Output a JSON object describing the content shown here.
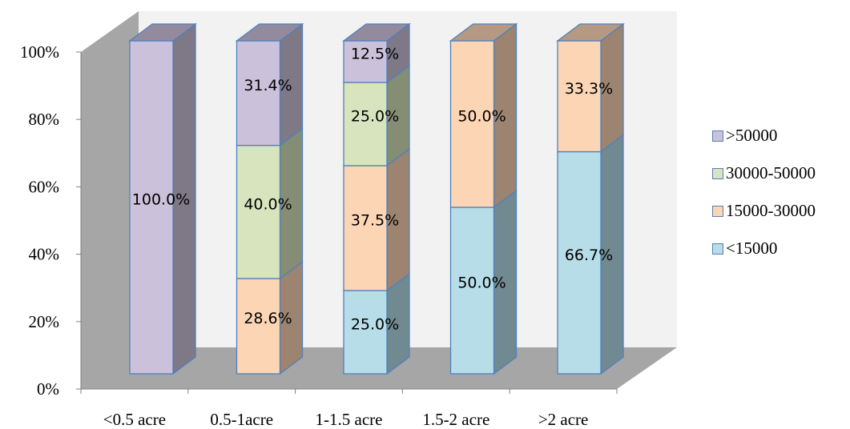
{
  "chart_data": {
    "type": "bar",
    "stacked": true,
    "percent": true,
    "three_d": true,
    "categories": [
      "<0.5 acre",
      "0.5-1acre",
      "1-1.5 acre",
      "1.5-2 acre",
      ">2 acre"
    ],
    "series": [
      {
        "name": "<15000",
        "color": "#b7dde8",
        "values": [
          0,
          0,
          25.0,
          50.0,
          66.7
        ]
      },
      {
        "name": "15000-30000",
        "color": "#fcd5b5",
        "values": [
          0,
          28.6,
          37.5,
          50.0,
          33.3
        ]
      },
      {
        "name": "30000-50000",
        "color": "#d7e4bd",
        "values": [
          0,
          40.0,
          25.0,
          0,
          0
        ]
      },
      {
        "name": ">50000",
        "color": "#ccc1da",
        "values": [
          100.0,
          31.4,
          12.5,
          0,
          0
        ]
      }
    ],
    "data_labels": [
      [
        "",
        "",
        "25.0%",
        "50.0%",
        "66.7%"
      ],
      [
        "",
        "28.6%",
        "37.5%",
        "50.0%",
        "33.3%"
      ],
      [
        "",
        "40.0%",
        "25.0%",
        "",
        ""
      ],
      [
        "100.0%",
        "31.4%",
        "12.5%",
        "",
        ""
      ]
    ],
    "y_ticks": [
      "0%",
      "20%",
      "40%",
      "60%",
      "80%",
      "100%"
    ],
    "ylim": [
      0,
      100
    ],
    "title": "",
    "xlabel": "",
    "ylabel": "",
    "grid": false,
    "legend_position": "right",
    "legend_order": [
      3,
      2,
      1,
      0
    ]
  }
}
